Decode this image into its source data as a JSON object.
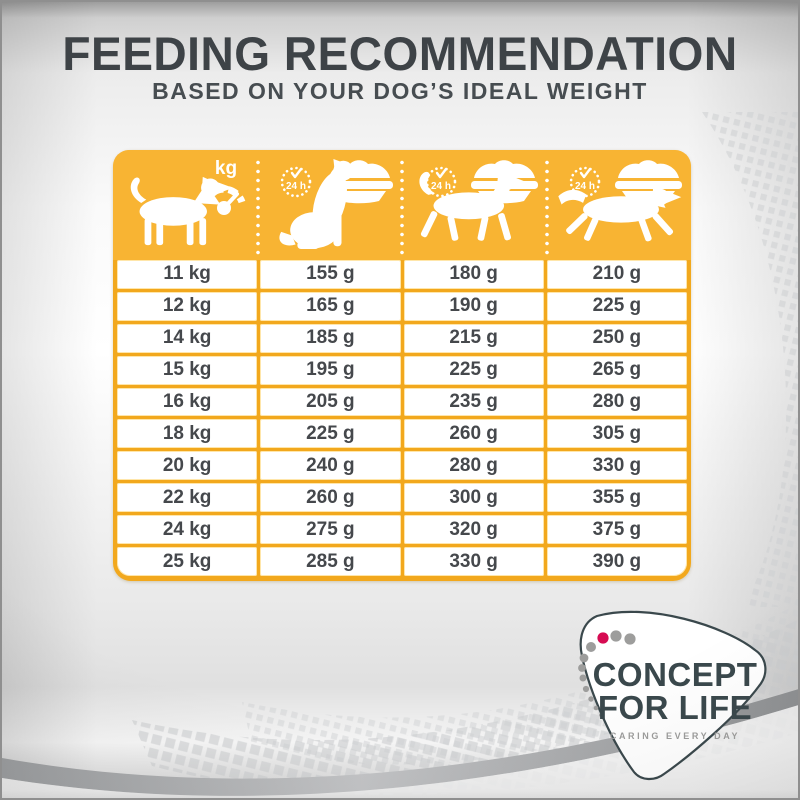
{
  "header": {
    "title": "FEEDING RECOMMENDATION",
    "subtitle": "BASED ON YOUR DOG’S IDEAL WEIGHT"
  },
  "table": {
    "kg_label": "kg",
    "clock_label": "24 h",
    "columns": [
      {
        "icon": "standing-dog-icon",
        "badge_icon": "kg-scale-icon",
        "meaning": "ideal weight in kg"
      },
      {
        "icon": "sitting-dog-icon",
        "badge_icon": "24h-food-bowl-icon",
        "meaning": "grams per 24 h, low activity"
      },
      {
        "icon": "trotting-dog-icon",
        "badge_icon": "24h-food-bowl-icon",
        "meaning": "grams per 24 h, normal activity"
      },
      {
        "icon": "running-dog-icon",
        "badge_icon": "24h-food-bowl-icon",
        "meaning": "grams per 24 h, high activity"
      }
    ],
    "rows": [
      [
        "11 kg",
        "155 g",
        "180 g",
        "210 g"
      ],
      [
        "12 kg",
        "165 g",
        "190 g",
        "225 g"
      ],
      [
        "14 kg",
        "185 g",
        "215 g",
        "250 g"
      ],
      [
        "15 kg",
        "195 g",
        "225 g",
        "265 g"
      ],
      [
        "16 kg",
        "205 g",
        "235 g",
        "280 g"
      ],
      [
        "18 kg",
        "225 g",
        "260 g",
        "305 g"
      ],
      [
        "20 kg",
        "240 g",
        "280 g",
        "330 g"
      ],
      [
        "22 kg",
        "260 g",
        "300 g",
        "355 g"
      ],
      [
        "24 kg",
        "275 g",
        "320 g",
        "375 g"
      ],
      [
        "25 kg",
        "285 g",
        "330 g",
        "390 g"
      ]
    ]
  },
  "chart_data": {
    "type": "table",
    "title": "FEEDING RECOMMENDATION",
    "subtitle": "BASED ON YOUR DOG’S IDEAL WEIGHT",
    "columns": [
      "ideal_weight_kg",
      "sitting_dog_g_per_24h",
      "trotting_dog_g_per_24h",
      "running_dog_g_per_24h"
    ],
    "weights_kg": [
      11,
      12,
      14,
      15,
      16,
      18,
      20,
      22,
      24,
      25
    ],
    "series": [
      {
        "name": "sitting_dog_g_per_24h",
        "values": [
          155,
          165,
          185,
          195,
          205,
          225,
          240,
          260,
          275,
          285
        ]
      },
      {
        "name": "trotting_dog_g_per_24h",
        "values": [
          180,
          190,
          215,
          225,
          235,
          260,
          280,
          300,
          320,
          330
        ]
      },
      {
        "name": "running_dog_g_per_24h",
        "values": [
          210,
          225,
          250,
          265,
          280,
          305,
          330,
          355,
          375,
          390
        ]
      }
    ]
  },
  "logo": {
    "line1": "CONCEPT",
    "line2": "FOR LIFE",
    "tagline": "CARING EVERY DAY"
  },
  "colors": {
    "brand_yellow_header": "#F8B433",
    "brand_yellow_border": "#F2A81D",
    "title_text": "#3E4347",
    "cell_text": "#45484C",
    "logo_green": "#3A484C",
    "logo_red_dot": "#D60B52",
    "logo_dot_gray": "#9D9D9C",
    "halftone_gray": "#CDCFD1",
    "swoosh_gray": "#8E9092"
  }
}
